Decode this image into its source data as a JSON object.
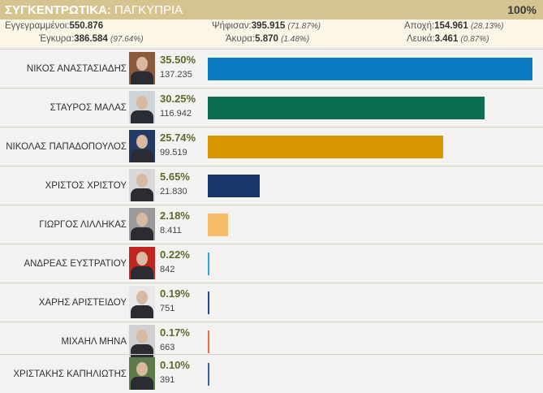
{
  "header": {
    "title_strong": "ΣΥΓΚΕΝΤΡΩΤΙΚΑ:",
    "title_rest": " ΠΑΓΚΥΠΡΙΑ",
    "percent_counted": "100%"
  },
  "stats": {
    "registered_label": "Εγγεγραμμένοι:",
    "registered_value": "550.876",
    "voted_label": "Ψήφισαν:",
    "voted_value": "395.915",
    "voted_pct": "(71.87%)",
    "abstention_label": "Αποχή:",
    "abstention_value": "154.961",
    "abstention_pct": "(28.13%)",
    "valid_label": "Έγκυρα:",
    "valid_value": "386.584",
    "valid_pct": "(97.64%)",
    "invalid_label": "Άκυρα:",
    "invalid_value": "5.870",
    "invalid_pct": "(1.48%)",
    "blank_label": "Λευκά:",
    "blank_value": "3.461",
    "blank_pct": "(0.87%)"
  },
  "candidates": [
    {
      "name": "ΝΙΚΟΣ ΑΝΑΣΤΑΣΙΑΔΗΣ",
      "pct": "35.50%",
      "votes": "137.235",
      "share": 35.5,
      "color": "#0a7bc1",
      "photo_bg": "#8a5a3a"
    },
    {
      "name": "ΣΤΑΥΡΟΣ ΜΑΛΑΣ",
      "pct": "30.25%",
      "votes": "116.942",
      "share": 30.25,
      "color": "#0a6e50",
      "photo_bg": "#cfd4d8"
    },
    {
      "name": "ΝΙΚΟΛΑΣ ΠΑΠΑΔΟΠΟΥΛΟΣ",
      "pct": "25.74%",
      "votes": "99.519",
      "share": 25.74,
      "color": "#d89500",
      "photo_bg": "#243a66"
    },
    {
      "name": "ΧΡΙΣΤΟΣ ΧΡΙΣΤΟΥ",
      "pct": "5.65%",
      "votes": "21.830",
      "share": 5.65,
      "color": "#1a3668",
      "photo_bg": "#d8d8d8"
    },
    {
      "name": "ΓΙΩΡΓΟΣ ΛΙΛΛΗΚΑΣ",
      "pct": "2.18%",
      "votes": "8.411",
      "share": 2.18,
      "color": "#f5bd6a",
      "photo_bg": "#9a9a9a"
    },
    {
      "name": "ΑΝΔΡΕΑΣ ΕΥΣΤΡΑΤΙΟΥ",
      "pct": "0.22%",
      "votes": "842",
      "share": 0.22,
      "color": "#2aa3e0",
      "photo_bg": "#c0261e"
    },
    {
      "name": "ΧΑΡΗΣ ΑΡΙΣΤΕΙΔΟΥ",
      "pct": "0.19%",
      "votes": "751",
      "share": 0.19,
      "color": "#1d4aa0",
      "photo_bg": "#e8e8e8"
    },
    {
      "name": "ΜΙΧΑΗΛ ΜΗΝΑ",
      "pct": "0.17%",
      "votes": "663",
      "share": 0.17,
      "color": "#e8733a",
      "photo_bg": "#d0d0d0"
    },
    {
      "name": "ΧΡΙΣΤΑΚΗΣ ΚΑΠΗΛΙΩΤΗΣ",
      "pct": "0.10%",
      "votes": "391",
      "share": 0.1,
      "color": "#3a5fb0",
      "photo_bg": "#5d7a4a"
    }
  ]
}
